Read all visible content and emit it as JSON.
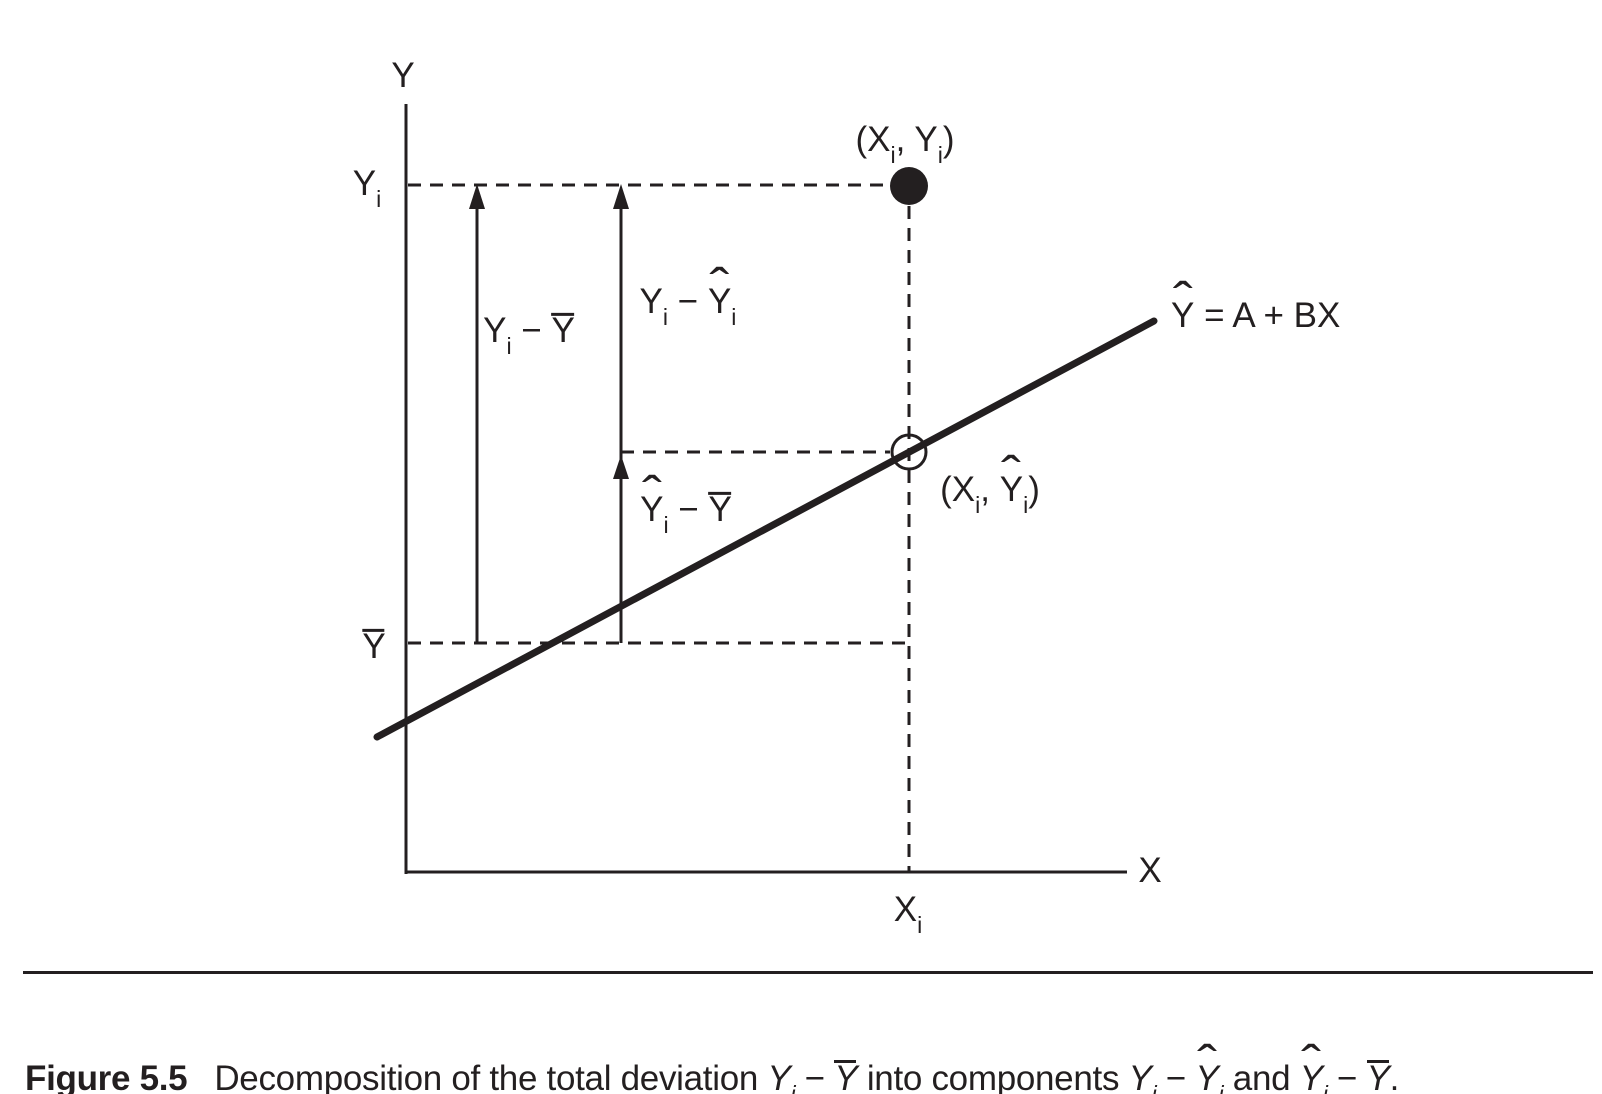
{
  "page": {
    "background": "#ffffff",
    "ink": "#231f20"
  },
  "figure": {
    "y_axis_label": "Y",
    "x_axis_label": "X",
    "ticks": {
      "yi": [
        {
          "t": "Y"
        },
        {
          "t": "i",
          "sub": true
        }
      ],
      "ybar": [
        {
          "t": "Y",
          "bar": true
        }
      ],
      "xi": [
        {
          "t": "X"
        },
        {
          "t": "i",
          "sub": true
        }
      ]
    },
    "points": {
      "observed_label": [
        {
          "t": "(X"
        },
        {
          "t": "i",
          "sub": true
        },
        {
          "t": ", Y"
        },
        {
          "t": "i",
          "sub": true
        },
        {
          "t": ")"
        }
      ],
      "fitted_label": [
        {
          "t": "(X"
        },
        {
          "t": "i",
          "sub": true
        },
        {
          "t": ", "
        },
        {
          "t": "Y",
          "hat": true
        },
        {
          "t": "i",
          "sub": true
        },
        {
          "t": ")"
        }
      ]
    },
    "deviation_labels": {
      "total": [
        {
          "t": "Y"
        },
        {
          "t": "i",
          "sub": true
        },
        {
          "t": " − "
        },
        {
          "t": "Y",
          "bar": true
        }
      ],
      "residual": [
        {
          "t": "Y"
        },
        {
          "t": "i",
          "sub": true
        },
        {
          "t": " − "
        },
        {
          "t": "Y",
          "hat": true
        },
        {
          "t": "i",
          "sub": true
        }
      ],
      "explained": [
        {
          "t": "Y",
          "hat": true
        },
        {
          "t": "i",
          "sub": true
        },
        {
          "t": " − "
        },
        {
          "t": "Y",
          "bar": true
        }
      ]
    },
    "regression_equation": [
      {
        "t": "Y",
        "hat": true
      },
      {
        "t": " = A + BX"
      }
    ]
  },
  "caption": {
    "label": "Figure 5.5",
    "segments": [
      {
        "t": "Decomposition of the total deviation "
      },
      {
        "t": "Y",
        "i": true
      },
      {
        "t": "i",
        "sub": true,
        "i": true
      },
      {
        "t": " − "
      },
      {
        "t": "Y",
        "bar": true,
        "i": true
      },
      {
        "t": " into components "
      },
      {
        "t": "Y",
        "i": true
      },
      {
        "t": "i",
        "sub": true,
        "i": true
      },
      {
        "t": " − "
      },
      {
        "t": "Y",
        "hat": true,
        "i": true
      },
      {
        "t": "i",
        "sub": true,
        "i": true
      },
      {
        "t": " and "
      },
      {
        "t": "Y",
        "hat": true,
        "i": true
      },
      {
        "t": "i",
        "sub": true,
        "i": true
      },
      {
        "t": " − "
      },
      {
        "t": "Y",
        "bar": true,
        "i": true
      },
      {
        "t": "."
      }
    ]
  }
}
